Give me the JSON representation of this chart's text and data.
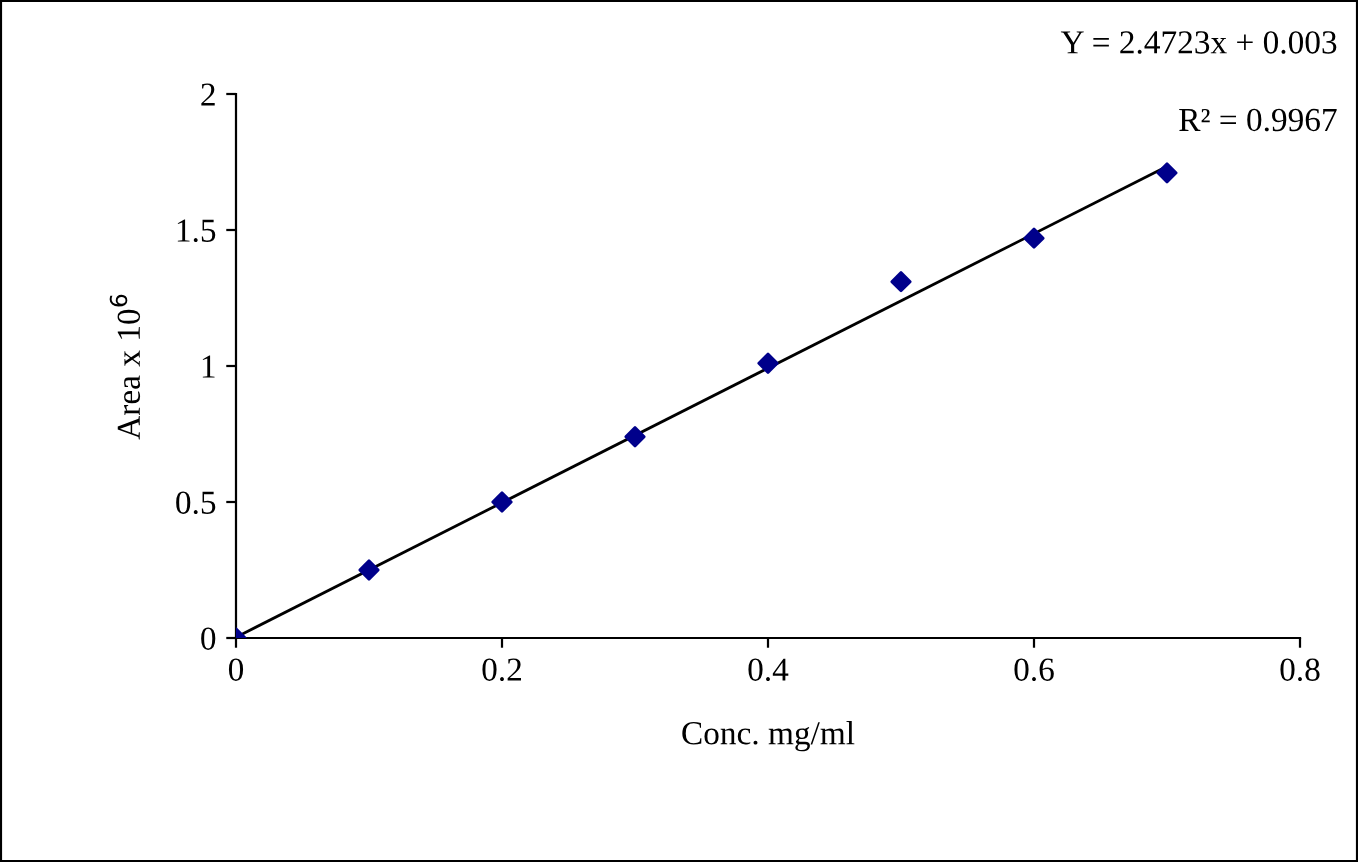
{
  "chart_data": {
    "type": "scatter",
    "xlabel": "Conc. mg/ml",
    "ylabel": "Area x 10$^{6}$",
    "annotations": [
      "Y = 2.4723x + 0.003",
      "R² = 0.9967"
    ],
    "series": [
      {
        "color": "#00008b",
        "marker": "diamond",
        "x": [
          0,
          0.1,
          0.2,
          0.3,
          0.4,
          0.5,
          0.6,
          0.7
        ],
        "values": [
          0,
          0.25,
          0.5,
          0.74,
          1.01,
          1.31,
          1.47,
          1.71
        ]
      },
      {
        "type": "line",
        "color": "#000000",
        "line_style": "solid",
        "x": [
          0,
          0.7
        ],
        "values": [
          0.003,
          1.734
        ]
      }
    ],
    "xlim": [
      0,
      0.8
    ],
    "xticks": [
      0,
      0.2,
      0.4,
      0.6,
      0.8
    ],
    "ylim": [
      0,
      2
    ],
    "yticks": [
      0,
      0.5,
      1,
      1.5,
      2
    ],
    "grid": false
  }
}
